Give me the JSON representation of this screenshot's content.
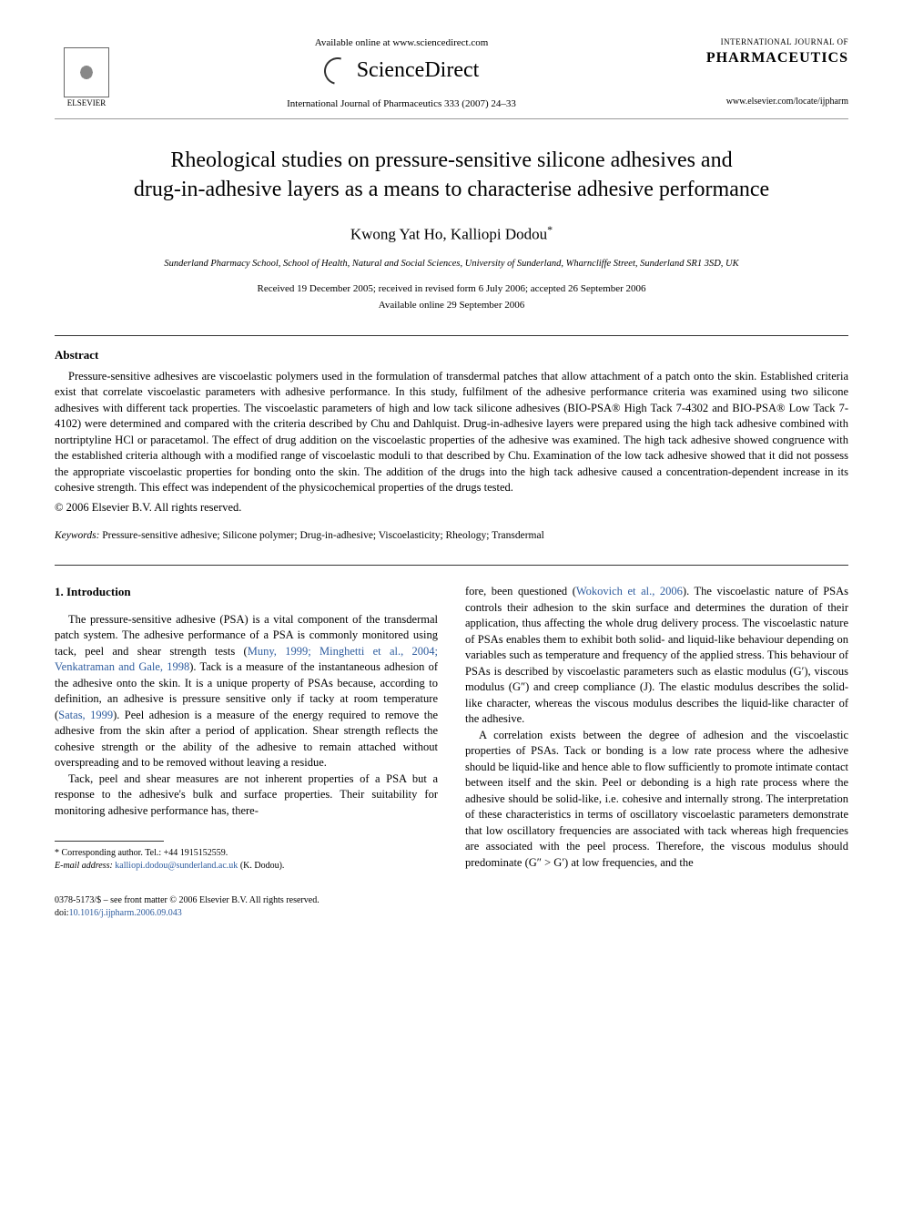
{
  "header": {
    "publisher_name": "ELSEVIER",
    "available_online": "Available online at www.sciencedirect.com",
    "sciencedirect": "ScienceDirect",
    "citation": "International Journal of Pharmaceutics 333 (2007) 24–33",
    "journal_label": "INTERNATIONAL JOURNAL OF",
    "journal_name": "PHARMACEUTICS",
    "journal_url": "www.elsevier.com/locate/ijpharm"
  },
  "article": {
    "title_line1": "Rheological studies on pressure-sensitive silicone adhesives and",
    "title_line2": "drug-in-adhesive layers as a means to characterise adhesive performance",
    "authors": "Kwong Yat Ho, Kalliopi Dodou",
    "corresponding_mark": "*",
    "affiliation": "Sunderland Pharmacy School, School of Health, Natural and Social Sciences, University of Sunderland, Wharncliffe Street, Sunderland SR1 3SD, UK",
    "received": "Received 19 December 2005; received in revised form 6 July 2006; accepted 26 September 2006",
    "available": "Available online 29 September 2006"
  },
  "abstract": {
    "heading": "Abstract",
    "text": "Pressure-sensitive adhesives are viscoelastic polymers used in the formulation of transdermal patches that allow attachment of a patch onto the skin. Established criteria exist that correlate viscoelastic parameters with adhesive performance. In this study, fulfilment of the adhesive performance criteria was examined using two silicone adhesives with different tack properties. The viscoelastic parameters of high and low tack silicone adhesives (BIO-PSA® High Tack 7-4302 and BIO-PSA® Low Tack 7-4102) were determined and compared with the criteria described by Chu and Dahlquist. Drug-in-adhesive layers were prepared using the high tack adhesive combined with nortriptyline HCl or paracetamol. The effect of drug addition on the viscoelastic properties of the adhesive was examined. The high tack adhesive showed congruence with the established criteria although with a modified range of viscoelastic moduli to that described by Chu. Examination of the low tack adhesive showed that it did not possess the appropriate viscoelastic properties for bonding onto the skin. The addition of the drugs into the high tack adhesive caused a concentration-dependent increase in its cohesive strength. This effect was independent of the physicochemical properties of the drugs tested.",
    "copyright": "© 2006 Elsevier B.V. All rights reserved."
  },
  "keywords": {
    "label": "Keywords:",
    "text": "Pressure-sensitive adhesive; Silicone polymer; Drug-in-adhesive; Viscoelasticity; Rheology; Transdermal"
  },
  "introduction": {
    "heading": "1. Introduction",
    "col1_p1_a": "The pressure-sensitive adhesive (PSA) is a vital component of the transdermal patch system. The adhesive performance of a PSA is commonly monitored using tack, peel and shear strength tests (",
    "col1_p1_ref1": "Muny, 1999; Minghetti et al., 2004; Venkatraman and Gale, 1998",
    "col1_p1_b": "). Tack is a measure of the instantaneous adhesion of the adhesive onto the skin. It is a unique property of PSAs because, according to definition, an adhesive is pressure sensitive only if tacky at room temperature (",
    "col1_p1_ref2": "Satas, 1999",
    "col1_p1_c": "). Peel adhesion is a measure of the energy required to remove the adhesive from the skin after a period of application. Shear strength reflects the cohesive strength or the ability of the adhesive to remain attached without overspreading and to be removed without leaving a residue.",
    "col1_p2": "Tack, peel and shear measures are not inherent properties of a PSA but a response to the adhesive's bulk and surface properties. Their suitability for monitoring adhesive performance has, there-",
    "col2_p1_a": "fore, been questioned (",
    "col2_p1_ref1": "Wokovich et al., 2006",
    "col2_p1_b": "). The viscoelastic nature of PSAs controls their adhesion to the skin surface and determines the duration of their application, thus affecting the whole drug delivery process. The viscoelastic nature of PSAs enables them to exhibit both solid- and liquid-like behaviour depending on variables such as temperature and frequency of the applied stress. This behaviour of PSAs is described by viscoelastic parameters such as elastic modulus (G′), viscous modulus (G″) and creep compliance (J). The elastic modulus describes the solid-like character, whereas the viscous modulus describes the liquid-like character of the adhesive.",
    "col2_p2": "A correlation exists between the degree of adhesion and the viscoelastic properties of PSAs. Tack or bonding is a low rate process where the adhesive should be liquid-like and hence able to flow sufficiently to promote intimate contact between itself and the skin. Peel or debonding is a high rate process where the adhesive should be solid-like, i.e. cohesive and internally strong. The interpretation of these characteristics in terms of oscillatory viscoelastic parameters demonstrate that low oscillatory frequencies are associated with tack whereas high frequencies are associated with the peel process. Therefore, the viscous modulus should predominate (G″ > G′) at low frequencies, and the"
  },
  "footnote": {
    "corresponding": "* Corresponding author. Tel.: +44 1915152559.",
    "email_label": "E-mail address:",
    "email": "kalliopi.dodou@sunderland.ac.uk",
    "email_attribution": "(K. Dodou)."
  },
  "footer": {
    "issn_line": "0378-5173/$ – see front matter © 2006 Elsevier B.V. All rights reserved.",
    "doi_label": "doi:",
    "doi": "10.1016/j.ijpharm.2006.09.043"
  },
  "colors": {
    "link": "#2e5c9e",
    "text": "#000000",
    "background": "#ffffff",
    "rule": "#333333"
  }
}
